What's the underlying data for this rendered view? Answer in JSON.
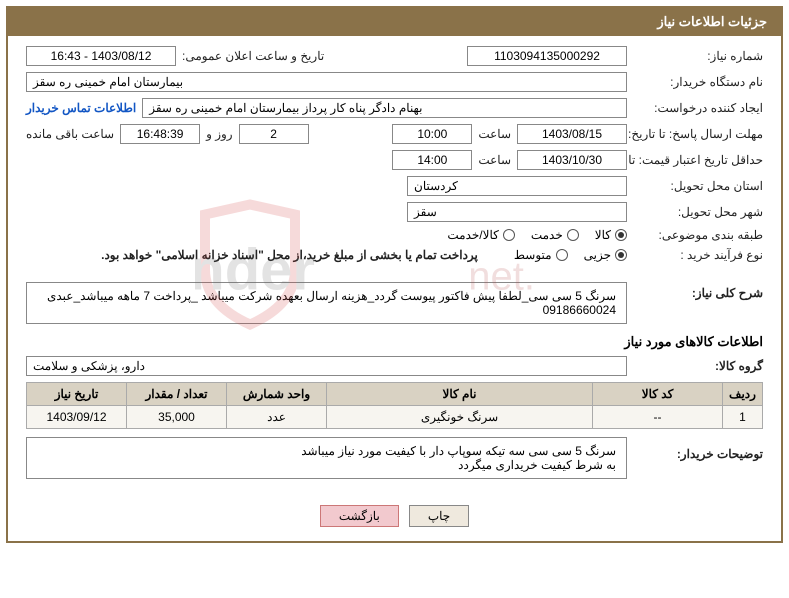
{
  "header": {
    "title": "جزئیات اطلاعات نیاز"
  },
  "labels": {
    "needNo": "شماره نیاز:",
    "announceDate": "تاریخ و ساعت اعلان عمومی:",
    "buyerOrg": "نام دستگاه خریدار:",
    "requester": "ایجاد کننده درخواست:",
    "buyerContact": "اطلاعات تماس خریدار",
    "responseDeadline": "مهلت ارسال پاسخ: تا تاریخ:",
    "hour": "ساعت",
    "daysAnd": "روز و",
    "remainingHours": "ساعت باقی مانده",
    "priceValidity": "حداقل تاریخ اعتبار قیمت: تا تاریخ:",
    "deliveryProvince": "استان محل تحویل:",
    "deliveryCity": "شهر محل تحویل:",
    "categorySubject": "طبقه بندی موضوعی:",
    "purchaseType": "نوع فرآیند خرید :",
    "purchaseNote": "پرداخت تمام یا بخشی از مبلغ خرید،از محل \"اسناد خزانه اسلامی\" خواهد بود.",
    "generalDesc": "شرح کلی نیاز:",
    "itemsSection": "اطلاعات کالاهای مورد نیاز",
    "goodsGroup": "گروه کالا:",
    "buyerDesc": "توضیحات خریدار:"
  },
  "fields": {
    "needNumber": "1103094135000292",
    "announceDateTime": "1403/08/12 - 16:43",
    "buyerOrg": "بیمارستان امام خمینی ره سقز",
    "requester": "بهنام دادگر پناه کار پرداز بیمارستان امام خمینی ره سقز",
    "responseDate": "1403/08/15",
    "responseHour": "10:00",
    "remainingDays": "2",
    "remainingTime": "16:48:39",
    "priceValidityDate": "1403/10/30",
    "priceValidityHour": "14:00",
    "province": "کردستان",
    "city": "سقز",
    "goodsGroup": "دارو، پزشکی و سلامت",
    "generalDesc": "سرنگ 5 سی سی_لطفا پیش فاکتور پیوست گردد_هزینه ارسال بعهده شرکت میباشد _پرداخت 7 ماهه میباشد_عبدی 09186660024",
    "buyerDesc": "سرنگ 5 سی سی سه تیکه سوپاپ دار با کیفیت مورد نیاز میباشد\nبه شرط کیفیت خریداری میگردد"
  },
  "radios": {
    "category": [
      {
        "label": "کالا",
        "checked": true
      },
      {
        "label": "خدمت",
        "checked": false
      },
      {
        "label": "کالا/خدمت",
        "checked": false
      }
    ],
    "purchaseType": [
      {
        "label": "جزیی",
        "checked": true
      },
      {
        "label": "متوسط",
        "checked": false
      }
    ]
  },
  "table": {
    "columns": [
      "ردیف",
      "کد کالا",
      "نام کالا",
      "واحد شمارش",
      "تعداد / مقدار",
      "تاریخ نیاز"
    ],
    "rows": [
      {
        "idx": "1",
        "code": "--",
        "name": "سرنگ خونگیرى",
        "unit": "عدد",
        "qty": "35,000",
        "date": "1403/09/12"
      }
    ],
    "colWidths": [
      "40px",
      "130px",
      "auto",
      "100px",
      "100px",
      "100px"
    ]
  },
  "buttons": {
    "print": "چاپ",
    "back": "بازگشت"
  },
  "watermark": {
    "text": "AriaTender.net",
    "shieldColor": "#d23a3a",
    "textColor": "#6a6a6a"
  }
}
